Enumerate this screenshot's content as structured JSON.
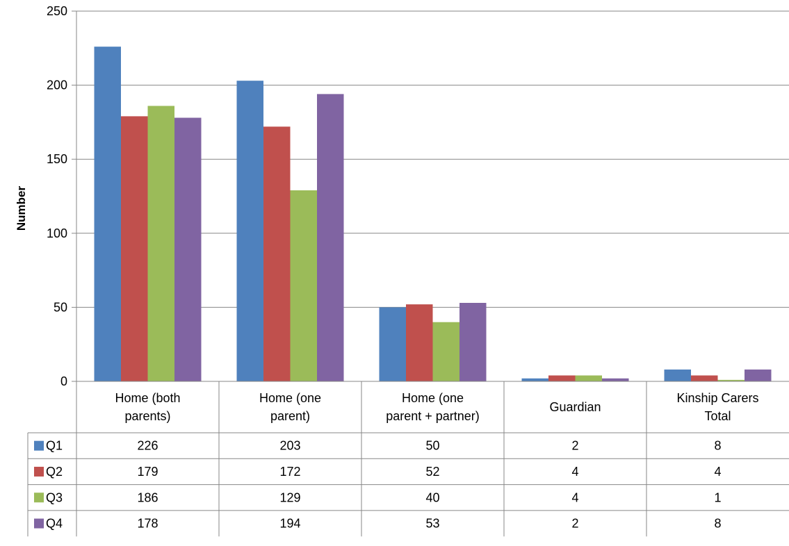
{
  "chart_data": {
    "type": "bar",
    "title": "",
    "xlabel": "",
    "ylabel": "Number",
    "ylim": [
      0,
      250
    ],
    "yticks": [
      0,
      50,
      100,
      150,
      200,
      250
    ],
    "grid": true,
    "legend": "data-table-left",
    "categories": [
      [
        "Home (both",
        "parents)"
      ],
      [
        "Home (one",
        "parent)"
      ],
      [
        "Home (one",
        "parent + partner)"
      ],
      [
        "Guardian"
      ],
      [
        "Kinship Carers",
        "Total"
      ]
    ],
    "series": [
      {
        "name": "Q1",
        "color": "#4F81BD",
        "values": [
          226,
          203,
          50,
          2,
          8
        ]
      },
      {
        "name": "Q2",
        "color": "#C0504D",
        "values": [
          179,
          172,
          52,
          4,
          4
        ]
      },
      {
        "name": "Q3",
        "color": "#9BBB59",
        "values": [
          186,
          129,
          40,
          4,
          1
        ]
      },
      {
        "name": "Q4",
        "color": "#8064A2",
        "values": [
          178,
          194,
          53,
          2,
          8
        ]
      }
    ]
  }
}
